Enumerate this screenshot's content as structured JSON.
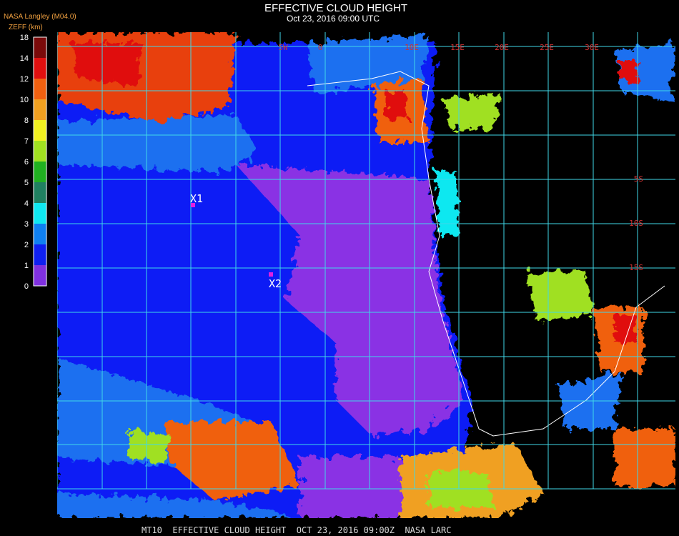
{
  "header": {
    "title": "EFFECTIVE CLOUD HEIGHT",
    "subtitle": "Oct 23, 2016 09:00 UTC"
  },
  "legend": {
    "source": "NASA Langley (M04.0)",
    "label": "ZEFF (km)",
    "ticks": [
      18,
      14,
      12,
      10,
      8,
      7,
      6,
      5,
      4,
      3,
      2,
      1,
      0
    ],
    "colors": [
      "#7a0a0a",
      "#e01010",
      "#f06010",
      "#f0a020",
      "#f0f020",
      "#a0e020",
      "#20b020",
      "#208060",
      "#10e8f0",
      "#1080f0",
      "#1020f0",
      "#8030e0"
    ]
  },
  "map": {
    "lon_labels": [
      "5W",
      "0",
      "10E",
      "15E",
      "20E",
      "25E",
      "30E"
    ],
    "lat_labels": [
      "5S",
      "10S",
      "15S"
    ],
    "markers": [
      {
        "label": "X1"
      },
      {
        "label": "X2"
      }
    ]
  },
  "footer": "MT10  EFFECTIVE CLOUD HEIGHT  OCT 23, 2016 09:00Z  NASA LARC"
}
